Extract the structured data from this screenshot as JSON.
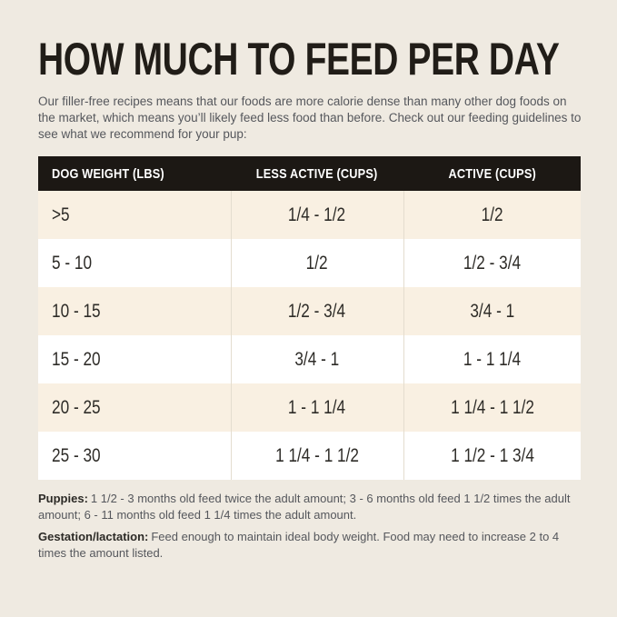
{
  "page": {
    "title": "HOW MUCH TO FEED PER DAY",
    "intro": "Our filler-free recipes means that our foods are more calorie dense than many other dog foods on the market, which means you’ll likely feed less food than before. Check out our feeding guidelines to see what we recommend for your pup:"
  },
  "feeding_table": {
    "columns": [
      "DOG WEIGHT (LBS)",
      "LESS ACTIVE (CUPS)",
      "ACTIVE (CUPS)"
    ],
    "rows": [
      [
        ">5",
        "1/4 - 1/2",
        "1/2"
      ],
      [
        "5 - 10",
        "1/2",
        "1/2 - 3/4"
      ],
      [
        "10 - 15",
        "1/2 - 3/4",
        "3/4 - 1"
      ],
      [
        "15 - 20",
        "3/4 - 1",
        "1 - 1 1/4"
      ],
      [
        "20 - 25",
        "1 - 1 1/4",
        "1 1/4 - 1 1/2"
      ],
      [
        "25 - 30",
        "1 1/4 - 1 1/2",
        "1 1/2 - 1 3/4"
      ]
    ]
  },
  "footnotes": {
    "puppies": {
      "label": "Puppies:",
      "text": "1 1/2 - 3 months old feed twice the adult amount; 3 - 6 months old feed 1 1/2 times the adult amount; 6 - 11 months old feed 1 1/4 times the adult amount."
    },
    "gestation": {
      "label": "Gestation/lactation:",
      "text": "Feed enough to maintain ideal body weight. Food may need to increase 2 to 4 times the amount listed."
    }
  },
  "colors": {
    "background": "#efeae1",
    "row_beige": "#f9f0e2",
    "row_white": "#ffffff",
    "header_bg": "#1c1814",
    "header_text": "#ffffff",
    "title_text": "#211d18",
    "body_text_gray": "#55575c",
    "cell_text": "#2e2c28",
    "divider": "#e4ddcf"
  }
}
